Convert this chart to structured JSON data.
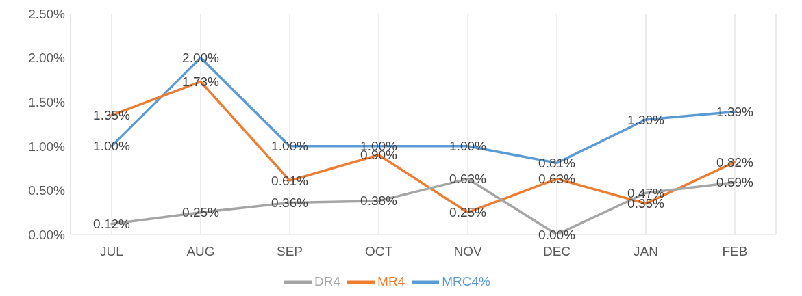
{
  "chart_data": {
    "type": "line",
    "categories": [
      "JUL",
      "AUG",
      "SEP",
      "OCT",
      "NOV",
      "DEC",
      "JAN",
      "FEB"
    ],
    "series": [
      {
        "name": "MRC4%",
        "color": "#5b9bd5",
        "values": [
          1.0,
          2.0,
          1.0,
          1.0,
          1.0,
          0.81,
          1.3,
          1.39
        ],
        "value_labels": [
          "1.00%",
          "2.00%",
          "1.00%",
          "1.00%",
          "1.00%",
          "0.81%",
          "1.30%",
          "1.39%"
        ]
      },
      {
        "name": "MR4",
        "color": "#ed7d31",
        "values": [
          1.35,
          1.73,
          0.61,
          0.9,
          0.25,
          0.63,
          0.35,
          0.82
        ],
        "value_labels": [
          "1.35%",
          "1.73%",
          "0.61%",
          "0.90%",
          "0.25%",
          "0.63%",
          "0.35%",
          "0.82%"
        ]
      },
      {
        "name": "DR4",
        "color": "#a5a5a5",
        "values": [
          0.12,
          0.25,
          0.36,
          0.38,
          0.63,
          0.0,
          0.47,
          0.59
        ],
        "value_labels": [
          "0.12%",
          "0.25%",
          "0.36%",
          "0.38%",
          "0.63%",
          "0.00%",
          "0.47%",
          "0.59%"
        ]
      }
    ],
    "ylim": [
      0,
      2.5
    ],
    "yticks": [
      {
        "value": 0,
        "label": "0.00%"
      },
      {
        "value": 0.5,
        "label": "0.50%"
      },
      {
        "value": 1,
        "label": "1.00%"
      },
      {
        "value": 1.5,
        "label": "1.50%"
      },
      {
        "value": 2,
        "label": "2.00%"
      },
      {
        "value": 2.5,
        "label": "2.50%"
      }
    ],
    "grid": "x",
    "legend": "bottom",
    "marker": "none",
    "line_style": "solid"
  }
}
